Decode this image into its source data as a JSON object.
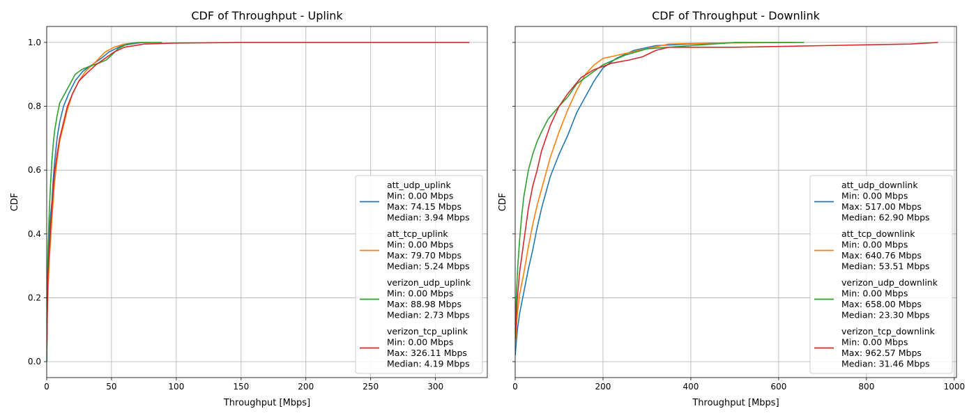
{
  "chart_data": [
    {
      "type": "line",
      "title": "CDF of Throughput - Uplink",
      "xlabel": "Throughput [Mbps]",
      "ylabel": "CDF",
      "xlim": [
        0,
        340
      ],
      "ylim": [
        -0.05,
        1.05
      ],
      "xticks": [
        0,
        50,
        100,
        150,
        200,
        250,
        300
      ],
      "yticks": [
        0.0,
        0.2,
        0.4,
        0.6,
        0.8,
        1.0
      ],
      "ytick_labels": [
        "0.0",
        "0.2",
        "0.4",
        "0.6",
        "0.8",
        "1.0"
      ],
      "grid": true,
      "legend_position": "lower-right",
      "series": [
        {
          "name": "att_udp_uplink",
          "legend_lines": [
            "att_udp_uplink",
            "Min: 0.00 Mbps",
            "Max: 74.15 Mbps",
            "Median: 3.94 Mbps"
          ],
          "color": "#1f77b4",
          "points": [
            [
              0,
              0
            ],
            [
              0.5,
              0.2
            ],
            [
              1,
              0.3
            ],
            [
              2,
              0.4
            ],
            [
              3,
              0.46
            ],
            [
              4,
              0.5
            ],
            [
              5,
              0.57
            ],
            [
              6,
              0.62
            ],
            [
              7,
              0.66
            ],
            [
              8,
              0.7
            ],
            [
              10,
              0.75
            ],
            [
              13,
              0.8
            ],
            [
              17,
              0.84
            ],
            [
              22,
              0.88
            ],
            [
              28,
              0.91
            ],
            [
              35,
              0.93
            ],
            [
              42,
              0.95
            ],
            [
              48,
              0.97
            ],
            [
              53,
              0.98
            ],
            [
              58,
              0.99
            ],
            [
              65,
              0.995
            ],
            [
              74.15,
              1.0
            ]
          ]
        },
        {
          "name": "att_tcp_uplink",
          "legend_lines": [
            "att_tcp_uplink",
            "Min: 0.00 Mbps",
            "Max: 79.70 Mbps",
            "Median: 5.24 Mbps"
          ],
          "color": "#ff7f0e",
          "points": [
            [
              0,
              0
            ],
            [
              0.5,
              0.15
            ],
            [
              1,
              0.22
            ],
            [
              2,
              0.32
            ],
            [
              3,
              0.38
            ],
            [
              4,
              0.45
            ],
            [
              5,
              0.5
            ],
            [
              6,
              0.56
            ],
            [
              8,
              0.63
            ],
            [
              10,
              0.69
            ],
            [
              13,
              0.74
            ],
            [
              16,
              0.79
            ],
            [
              20,
              0.84
            ],
            [
              25,
              0.88
            ],
            [
              30,
              0.91
            ],
            [
              38,
              0.94
            ],
            [
              45,
              0.97
            ],
            [
              52,
              0.985
            ],
            [
              60,
              0.995
            ],
            [
              70,
              0.999
            ],
            [
              79.7,
              1.0
            ]
          ]
        },
        {
          "name": "verizon_udp_uplink",
          "legend_lines": [
            "verizon_udp_uplink",
            "Min: 0.00 Mbps",
            "Max: 88.98 Mbps",
            "Median: 2.73 Mbps"
          ],
          "color": "#2ca02c",
          "points": [
            [
              0,
              0
            ],
            [
              0.5,
              0.25
            ],
            [
              1,
              0.35
            ],
            [
              2,
              0.47
            ],
            [
              3,
              0.56
            ],
            [
              4,
              0.63
            ],
            [
              5,
              0.68
            ],
            [
              6,
              0.72
            ],
            [
              8,
              0.77
            ],
            [
              10,
              0.81
            ],
            [
              14,
              0.84
            ],
            [
              18,
              0.87
            ],
            [
              22,
              0.9
            ],
            [
              27,
              0.915
            ],
            [
              33,
              0.925
            ],
            [
              40,
              0.935
            ],
            [
              46,
              0.945
            ],
            [
              50,
              0.96
            ],
            [
              55,
              0.98
            ],
            [
              62,
              0.995
            ],
            [
              70,
              1.0
            ],
            [
              88.98,
              1.0
            ]
          ]
        },
        {
          "name": "verizon_tcp_uplink",
          "legend_lines": [
            "verizon_tcp_uplink",
            "Min: 0.00 Mbps",
            "Max: 326.11 Mbps",
            "Median: 4.19 Mbps"
          ],
          "color": "#d62728",
          "points": [
            [
              0,
              0
            ],
            [
              0.5,
              0.18
            ],
            [
              1,
              0.27
            ],
            [
              2,
              0.35
            ],
            [
              3,
              0.42
            ],
            [
              4,
              0.48
            ],
            [
              5,
              0.54
            ],
            [
              6,
              0.59
            ],
            [
              8,
              0.65
            ],
            [
              10,
              0.7
            ],
            [
              13,
              0.75
            ],
            [
              16,
              0.8
            ],
            [
              20,
              0.84
            ],
            [
              25,
              0.88
            ],
            [
              30,
              0.9
            ],
            [
              38,
              0.93
            ],
            [
              45,
              0.95
            ],
            [
              52,
              0.97
            ],
            [
              60,
              0.985
            ],
            [
              75,
              0.995
            ],
            [
              100,
              0.998
            ],
            [
              150,
              1.0
            ],
            [
              326.11,
              1.0
            ]
          ]
        }
      ]
    },
    {
      "type": "line",
      "title": "CDF of Throughput - Downlink",
      "xlabel": "Throughput [Mbps]",
      "ylabel": "CDF",
      "xlim": [
        0,
        1005
      ],
      "ylim": [
        -0.05,
        1.05
      ],
      "xticks": [
        0,
        200,
        400,
        600,
        800,
        1000
      ],
      "yticks": [
        0.0,
        0.2,
        0.4,
        0.6,
        0.8,
        1.0
      ],
      "grid": true,
      "legend_position": "lower-right",
      "series": [
        {
          "name": "att_udp_downlink",
          "legend_lines": [
            "att_udp_downlink",
            "Min: 0.00 Mbps",
            "Max: 517.00 Mbps",
            "Median: 62.90 Mbps"
          ],
          "color": "#1f77b4",
          "points": [
            [
              0,
              0.02
            ],
            [
              5,
              0.1
            ],
            [
              10,
              0.15
            ],
            [
              20,
              0.22
            ],
            [
              30,
              0.29
            ],
            [
              40,
              0.35
            ],
            [
              50,
              0.42
            ],
            [
              60,
              0.48
            ],
            [
              70,
              0.53
            ],
            [
              80,
              0.58
            ],
            [
              100,
              0.65
            ],
            [
              120,
              0.71
            ],
            [
              140,
              0.78
            ],
            [
              160,
              0.83
            ],
            [
              180,
              0.88
            ],
            [
              200,
              0.92
            ],
            [
              230,
              0.95
            ],
            [
              270,
              0.975
            ],
            [
              320,
              0.99
            ],
            [
              400,
              0.995
            ],
            [
              517,
              1.0
            ]
          ]
        },
        {
          "name": "att_tcp_downlink",
          "legend_lines": [
            "att_tcp_downlink",
            "Min: 0.00 Mbps",
            "Max: 640.76 Mbps",
            "Median: 53.51 Mbps"
          ],
          "color": "#ff7f0e",
          "points": [
            [
              0,
              0.05
            ],
            [
              5,
              0.15
            ],
            [
              10,
              0.21
            ],
            [
              20,
              0.28
            ],
            [
              30,
              0.36
            ],
            [
              40,
              0.43
            ],
            [
              50,
              0.49
            ],
            [
              60,
              0.54
            ],
            [
              70,
              0.59
            ],
            [
              80,
              0.64
            ],
            [
              100,
              0.72
            ],
            [
              120,
              0.79
            ],
            [
              140,
              0.85
            ],
            [
              160,
              0.9
            ],
            [
              180,
              0.93
            ],
            [
              200,
              0.95
            ],
            [
              250,
              0.965
            ],
            [
              300,
              0.98
            ],
            [
              350,
              0.995
            ],
            [
              450,
              0.998
            ],
            [
              640.76,
              1.0
            ]
          ]
        },
        {
          "name": "verizon_udp_downlink",
          "legend_lines": [
            "verizon_udp_downlink",
            "Min: 0.00 Mbps",
            "Max: 658.00 Mbps",
            "Median: 23.30 Mbps"
          ],
          "color": "#2ca02c",
          "points": [
            [
              0,
              0.1
            ],
            [
              3,
              0.22
            ],
            [
              6,
              0.3
            ],
            [
              10,
              0.38
            ],
            [
              15,
              0.46
            ],
            [
              20,
              0.52
            ],
            [
              30,
              0.6
            ],
            [
              40,
              0.65
            ],
            [
              50,
              0.69
            ],
            [
              60,
              0.72
            ],
            [
              75,
              0.76
            ],
            [
              100,
              0.8
            ],
            [
              120,
              0.83
            ],
            [
              140,
              0.87
            ],
            [
              170,
              0.9
            ],
            [
              200,
              0.93
            ],
            [
              250,
              0.96
            ],
            [
              300,
              0.98
            ],
            [
              400,
              0.99
            ],
            [
              500,
              1.0
            ],
            [
              658,
              1.0
            ]
          ]
        },
        {
          "name": "verizon_tcp_downlink",
          "legend_lines": [
            "verizon_tcp_downlink",
            "Min: 0.00 Mbps",
            "Max: 962.57 Mbps",
            "Median: 31.46 Mbps"
          ],
          "color": "#d62728",
          "points": [
            [
              0,
              0.07
            ],
            [
              5,
              0.2
            ],
            [
              10,
              0.28
            ],
            [
              20,
              0.38
            ],
            [
              30,
              0.48
            ],
            [
              40,
              0.55
            ],
            [
              50,
              0.6
            ],
            [
              60,
              0.66
            ],
            [
              80,
              0.74
            ],
            [
              100,
              0.8
            ],
            [
              120,
              0.84
            ],
            [
              150,
              0.89
            ],
            [
              180,
              0.915
            ],
            [
              220,
              0.935
            ],
            [
              260,
              0.945
            ],
            [
              290,
              0.955
            ],
            [
              320,
              0.975
            ],
            [
              350,
              0.985
            ],
            [
              500,
              0.985
            ],
            [
              700,
              0.99
            ],
            [
              900,
              0.995
            ],
            [
              962.57,
              1.0
            ]
          ]
        }
      ]
    }
  ]
}
